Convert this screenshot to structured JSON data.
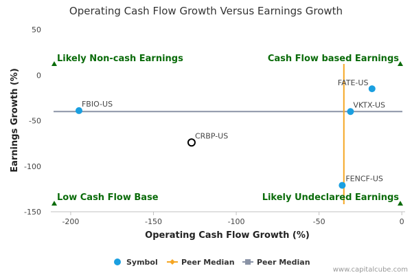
{
  "chart_data": {
    "type": "scatter",
    "title": "Operating Cash Flow Growth Versus Earnings Growth",
    "xlabel": "Operating Cash Flow Growth (%)",
    "ylabel": "Earnings Growth (%)",
    "xlim": [
      -212,
      2
    ],
    "ylim": [
      -150,
      50
    ],
    "xticks": [
      -200,
      -150,
      -100,
      -50,
      0
    ],
    "yticks": [
      50,
      0,
      -50,
      -100,
      -150
    ],
    "grid": false,
    "legend_position": "bottom",
    "points": [
      {
        "label": "FATE-US",
        "x": -18,
        "y": -15,
        "style": "filled",
        "color": "#1a9fe0"
      },
      {
        "label": "FBIO-US",
        "x": -195,
        "y": -39,
        "style": "filled",
        "color": "#1a9fe0"
      },
      {
        "label": "VKTX-US",
        "x": -31,
        "y": -40,
        "style": "filled",
        "color": "#1a9fe0"
      },
      {
        "label": "CRBP-US",
        "x": -127,
        "y": -74,
        "style": "hollow",
        "color": "#000000"
      },
      {
        "label": "FENCF-US",
        "x": -36,
        "y": -121,
        "style": "filled",
        "color": "#1a9fe0"
      }
    ],
    "peer_median_x": -35,
    "peer_median_y": -40,
    "quadrant_labels": {
      "top_left": "Likely Non-cash Earnings",
      "top_right": "Cash Flow based Earnings",
      "bottom_left": "Low Cash Flow Base",
      "bottom_right": "Likely Undeclared Earnings"
    },
    "legend": [
      {
        "label": "Symbol",
        "marker": "circle",
        "color": "#1a9fe0"
      },
      {
        "label": "Peer Median",
        "marker": "diamond-line",
        "color": "#f5a623"
      },
      {
        "label": "Peer Median",
        "marker": "square-line",
        "color": "#8a93a6"
      }
    ],
    "colors": {
      "vertical_median": "#f5a623",
      "horizontal_median": "#8a93a6",
      "quadrant_text": "#0a6b0a"
    }
  },
  "credit": "www.capitalcube.com"
}
